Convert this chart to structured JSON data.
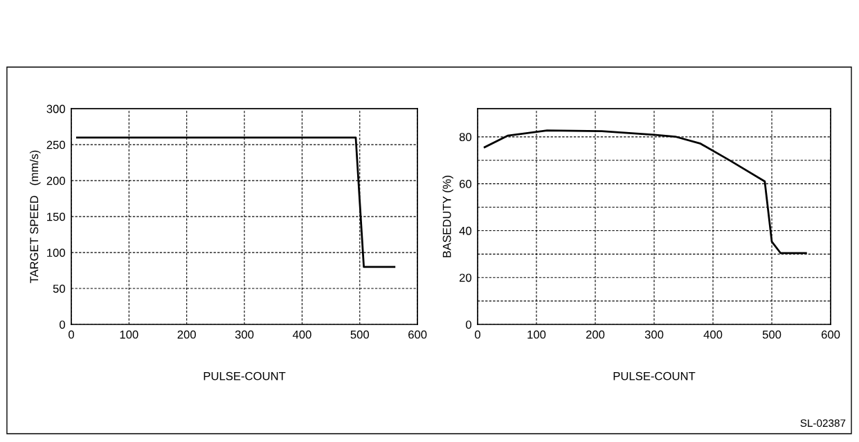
{
  "chart_data": [
    {
      "type": "line",
      "xlabel": "PULSE-COUNT",
      "ylabel": "TARGET SPEED   (mm/s)",
      "xlim": [
        0,
        600
      ],
      "ylim": [
        0,
        300
      ],
      "xticks": [
        0,
        100,
        200,
        300,
        400,
        500,
        600
      ],
      "yticks": [
        0,
        50,
        100,
        150,
        200,
        250,
        300
      ],
      "grid": true,
      "legend": false,
      "line_style": "solid",
      "marker": "none",
      "series": [
        {
          "color": "#000000",
          "x": [
            10,
            493,
            507,
            560
          ],
          "values": [
            260,
            260,
            80,
            80
          ]
        }
      ]
    },
    {
      "type": "line",
      "xlabel": "PULSE-COUNT",
      "ylabel": "BASEDUTY (%)",
      "xlim": [
        0,
        600
      ],
      "ylim": [
        0,
        92
      ],
      "xticks": [
        0,
        100,
        200,
        300,
        400,
        500,
        600
      ],
      "yticks": [
        0,
        {
          "value": 10,
          "label": null
        },
        20,
        {
          "value": 30,
          "label": null
        },
        40,
        {
          "value": 50,
          "label": null
        },
        60,
        {
          "value": 70,
          "label": null
        },
        80
      ],
      "grid": true,
      "legend": false,
      "line_style": "solid",
      "marker": "none",
      "annotations": [
        "SL-02387"
      ],
      "series": [
        {
          "color": "#000000",
          "x": [
            12,
            51,
            118,
            211,
            300,
            336,
            379,
            429,
            488,
            500,
            515,
            558
          ],
          "values": [
            75.6,
            80.5,
            82.7,
            82.4,
            80.9,
            80.1,
            77.1,
            69.9,
            61,
            35.3,
            30.4,
            30.4
          ]
        }
      ]
    }
  ]
}
